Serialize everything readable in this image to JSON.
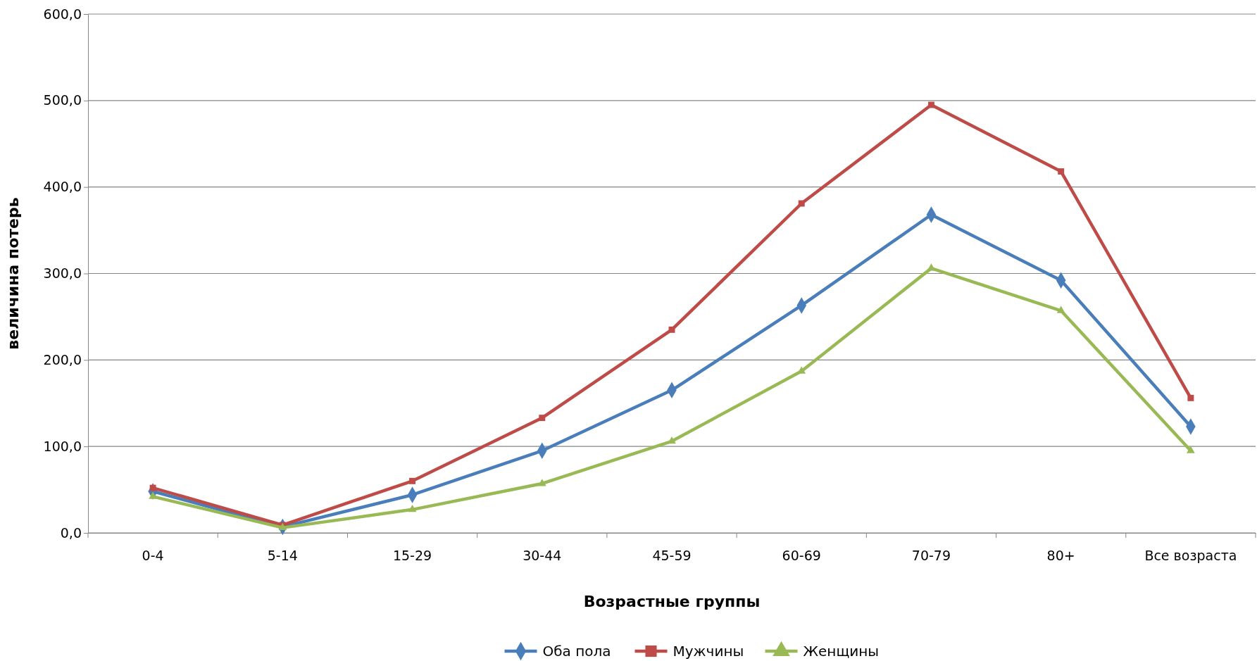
{
  "chart_data": {
    "type": "line",
    "xlabel": "Возрастные группы",
    "ylabel": "величина потерь",
    "categories": [
      "0-4",
      "5-14",
      "15-29",
      "30-44",
      "45-59",
      "60-69",
      "70-79",
      "80+",
      "Все возраста"
    ],
    "series": [
      {
        "name": "Оба пола",
        "color": "#4a7ebb",
        "marker": "diamond",
        "values": [
          48,
          7,
          44,
          95,
          165,
          263,
          368,
          292,
          123
        ]
      },
      {
        "name": "Мужчины",
        "color": "#be4b48",
        "marker": "square",
        "values": [
          52,
          9,
          60,
          133,
          235,
          381,
          495,
          418,
          156
        ]
      },
      {
        "name": "Женщины",
        "color": "#98b954",
        "marker": "triangle",
        "values": [
          42,
          6,
          27,
          57,
          106,
          187,
          306,
          257,
          95
        ]
      }
    ],
    "ylim": [
      0,
      600
    ],
    "yticks": [
      {
        "value": 0,
        "label": "0,0"
      },
      {
        "value": 100,
        "label": "100,0"
      },
      {
        "value": 200,
        "label": "200,0"
      },
      {
        "value": 300,
        "label": "300,0"
      },
      {
        "value": 400,
        "label": "400,0"
      },
      {
        "value": 500,
        "label": "500,0"
      },
      {
        "value": 600,
        "label": "600,0"
      }
    ],
    "grid": "y",
    "legend": "bottom",
    "line_style": "solid"
  }
}
